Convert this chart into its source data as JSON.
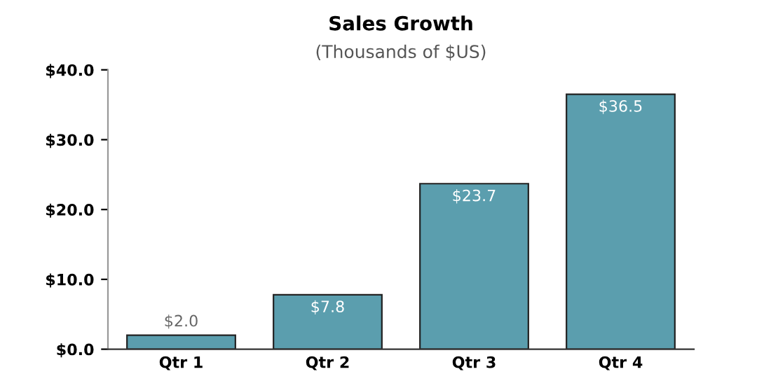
{
  "chart_data": {
    "type": "bar",
    "title": "Sales Growth",
    "subtitle": "(Thousands of $US)",
    "categories": [
      "Qtr 1",
      "Qtr 2",
      "Qtr 3",
      "Qtr 4"
    ],
    "values": [
      2.0,
      7.8,
      23.7,
      36.5
    ],
    "value_labels": [
      "$2.0",
      "$7.8",
      "$23.7",
      "$36.5"
    ],
    "color": "#5b9eae",
    "ylim": [
      0,
      40
    ],
    "yticks": [
      {
        "value": 0,
        "label": "$0.0"
      },
      {
        "value": 10,
        "label": "$10.0"
      },
      {
        "value": 20,
        "label": "$20.0"
      },
      {
        "value": 30,
        "label": "$30.0"
      },
      {
        "value": 40,
        "label": "$40.0"
      }
    ],
    "grid": false
  }
}
